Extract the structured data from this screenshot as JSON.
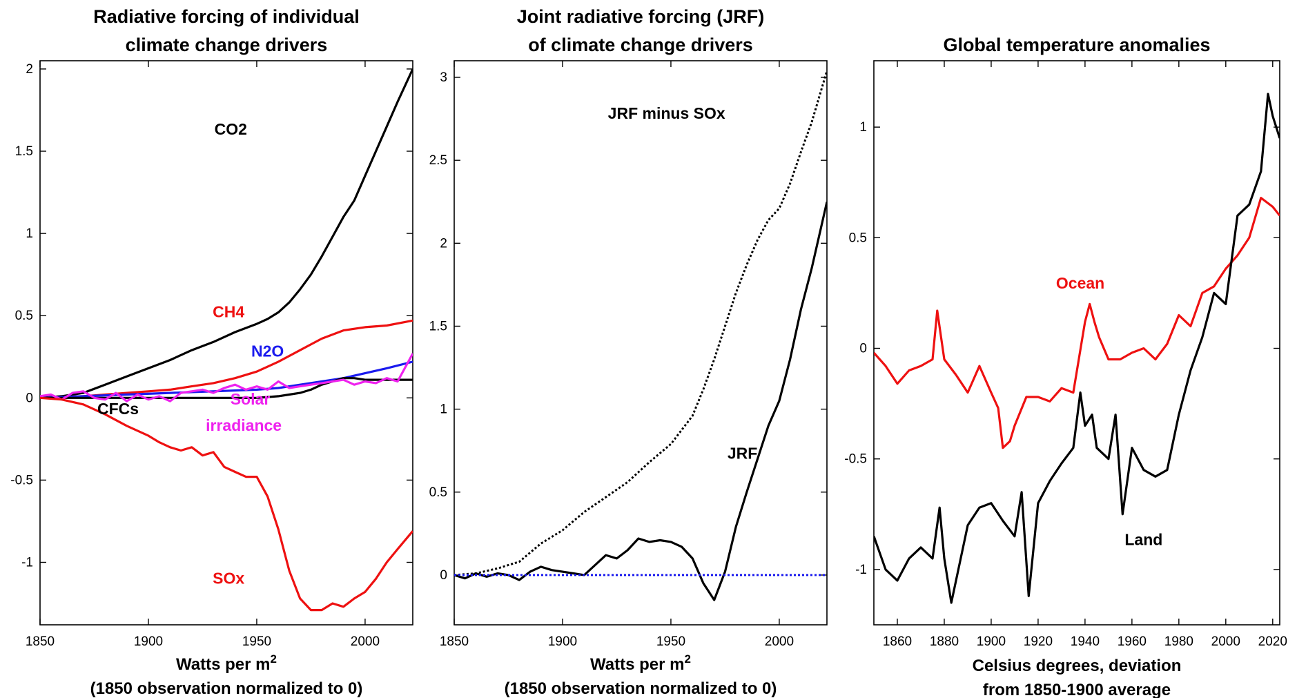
{
  "chart_data": [
    {
      "type": "line",
      "title": "Radiative forcing of individual climate change drivers",
      "title_lines": [
        "Radiative forcing of individual",
        "climate change drivers"
      ],
      "xlabel": "Watts per m2",
      "xlabel_main": "Watts per m",
      "xlabel_sup": "2",
      "xlabel_line2": "(1850 observation normalized to 0)",
      "xlim": [
        1850,
        2022
      ],
      "ylim": [
        -1.38,
        2.05
      ],
      "xticks": [
        1850,
        1900,
        1950,
        2000
      ],
      "yticks": [
        2,
        1.5,
        1,
        0.5,
        0,
        -0.5,
        -1
      ],
      "yticklabels": [
        "2",
        "1.5",
        "1",
        "0.5",
        "0",
        "-0.5",
        "-1"
      ],
      "series": [
        {
          "name": "CO2",
          "color": "#000000",
          "style": "solid",
          "x": [
            1850,
            1860,
            1870,
            1880,
            1890,
            1900,
            1910,
            1920,
            1930,
            1940,
            1950,
            1955,
            1960,
            1965,
            1970,
            1975,
            1980,
            1985,
            1990,
            1995,
            2000,
            2005,
            2010,
            2015,
            2022
          ],
          "y": [
            0,
            0.01,
            0.03,
            0.08,
            0.13,
            0.18,
            0.23,
            0.29,
            0.34,
            0.4,
            0.45,
            0.48,
            0.52,
            0.58,
            0.66,
            0.75,
            0.86,
            0.98,
            1.1,
            1.2,
            1.35,
            1.5,
            1.65,
            1.8,
            2.0
          ]
        },
        {
          "name": "CH4",
          "color": "#ee1111",
          "style": "solid",
          "x": [
            1850,
            1870,
            1890,
            1900,
            1910,
            1920,
            1930,
            1940,
            1950,
            1960,
            1970,
            1980,
            1990,
            2000,
            2010,
            2022
          ],
          "y": [
            0,
            0.01,
            0.03,
            0.04,
            0.05,
            0.07,
            0.09,
            0.12,
            0.16,
            0.22,
            0.29,
            0.36,
            0.41,
            0.43,
            0.44,
            0.47
          ]
        },
        {
          "name": "N2O",
          "color": "#1a1aee",
          "style": "solid",
          "x": [
            1850,
            1870,
            1890,
            1910,
            1930,
            1950,
            1960,
            1970,
            1980,
            1990,
            2000,
            2010,
            2022
          ],
          "y": [
            0,
            0.01,
            0.02,
            0.03,
            0.04,
            0.05,
            0.06,
            0.08,
            0.1,
            0.12,
            0.15,
            0.18,
            0.22
          ]
        },
        {
          "name": "CFCs",
          "color": "#000000",
          "style": "solid",
          "x": [
            1850,
            1900,
            1940,
            1950,
            1960,
            1965,
            1970,
            1975,
            1980,
            1985,
            1990,
            1995,
            2000,
            2010,
            2022
          ],
          "y": [
            0,
            0,
            0,
            0,
            0.01,
            0.02,
            0.03,
            0.05,
            0.08,
            0.1,
            0.12,
            0.12,
            0.11,
            0.11,
            0.11
          ]
        },
        {
          "name": "Solar irradiance",
          "color": "#ee22ee",
          "style": "solid",
          "x": [
            1850,
            1855,
            1860,
            1865,
            1870,
            1875,
            1880,
            1885,
            1890,
            1895,
            1900,
            1905,
            1910,
            1915,
            1920,
            1925,
            1930,
            1935,
            1940,
            1945,
            1950,
            1955,
            1960,
            1965,
            1970,
            1975,
            1980,
            1985,
            1990,
            1995,
            2000,
            2005,
            2010,
            2015,
            2022
          ],
          "y": [
            0.01,
            0.02,
            -0.01,
            0.03,
            0.04,
            0.0,
            -0.01,
            0.03,
            -0.02,
            0.02,
            -0.01,
            0.01,
            -0.02,
            0.03,
            0.04,
            0.05,
            0.03,
            0.06,
            0.08,
            0.05,
            0.07,
            0.05,
            0.1,
            0.06,
            0.07,
            0.08,
            0.09,
            0.1,
            0.11,
            0.08,
            0.1,
            0.09,
            0.12,
            0.1,
            0.27
          ]
        },
        {
          "name": "SOx",
          "color": "#ee1111",
          "style": "solid",
          "x": [
            1850,
            1860,
            1870,
            1880,
            1890,
            1900,
            1905,
            1910,
            1915,
            1920,
            1925,
            1930,
            1935,
            1940,
            1945,
            1950,
            1955,
            1960,
            1965,
            1970,
            1975,
            1980,
            1985,
            1990,
            1995,
            2000,
            2005,
            2010,
            2015,
            2022
          ],
          "y": [
            0,
            -0.01,
            -0.04,
            -0.1,
            -0.17,
            -0.23,
            -0.27,
            -0.3,
            -0.32,
            -0.3,
            -0.35,
            -0.33,
            -0.42,
            -0.45,
            -0.48,
            -0.48,
            -0.6,
            -0.8,
            -1.05,
            -1.22,
            -1.29,
            -1.29,
            -1.25,
            -1.27,
            -1.22,
            -1.18,
            -1.1,
            -1.0,
            -0.92,
            -0.81
          ]
        }
      ],
      "annotations": [
        {
          "text": "CO2",
          "color": "#000000",
          "x": 1938,
          "y": 1.6
        },
        {
          "text": "CH4",
          "color": "#ee1111",
          "x": 1937,
          "y": 0.49
        },
        {
          "text": "N2O",
          "color": "#1a1aee",
          "x": 1955,
          "y": 0.25
        },
        {
          "text": "CFCs",
          "color": "#000000",
          "x": 1886,
          "y": -0.1
        },
        {
          "text": "Solar",
          "color": "#ee22ee",
          "x": 1947,
          "y": -0.04
        },
        {
          "text": "irradiance",
          "color": "#ee22ee",
          "x": 1944,
          "y": -0.2
        },
        {
          "text": "SOx",
          "color": "#ee1111",
          "x": 1937,
          "y": -1.13
        }
      ]
    },
    {
      "type": "line",
      "title": "Joint radiative forcing (JRF) of climate change drivers",
      "title_lines": [
        "Joint radiative forcing (JRF)",
        "of climate change drivers"
      ],
      "xlabel": "Watts per m2",
      "xlabel_main": "Watts per m",
      "xlabel_sup": "2",
      "xlabel_line2": "(1850 observation normalized to 0)",
      "xlim": [
        1850,
        2022
      ],
      "ylim": [
        -0.3,
        3.1
      ],
      "xticks": [
        1850,
        1900,
        1950,
        2000
      ],
      "yticks": [
        3,
        2.5,
        2,
        1.5,
        1,
        0.5,
        0
      ],
      "yticklabels": [
        "3",
        "2.5",
        "2",
        "1.5",
        "1",
        "0.5",
        "0"
      ],
      "series": [
        {
          "name": "JRF minus SOx",
          "color": "#000000",
          "style": "dotted",
          "x": [
            1850,
            1860,
            1870,
            1880,
            1890,
            1900,
            1910,
            1920,
            1930,
            1940,
            1950,
            1960,
            1965,
            1970,
            1975,
            1980,
            1985,
            1990,
            1995,
            2000,
            2005,
            2010,
            2015,
            2022
          ],
          "y": [
            0,
            0.01,
            0.04,
            0.08,
            0.19,
            0.27,
            0.38,
            0.47,
            0.56,
            0.68,
            0.79,
            0.96,
            1.12,
            1.3,
            1.5,
            1.7,
            1.87,
            2.02,
            2.14,
            2.21,
            2.36,
            2.55,
            2.73,
            3.04
          ]
        },
        {
          "name": "JRF",
          "color": "#000000",
          "style": "solid",
          "x": [
            1850,
            1855,
            1860,
            1865,
            1870,
            1875,
            1880,
            1885,
            1890,
            1895,
            1900,
            1905,
            1910,
            1915,
            1920,
            1925,
            1930,
            1935,
            1940,
            1945,
            1950,
            1955,
            1960,
            1965,
            1970,
            1975,
            1980,
            1985,
            1990,
            1995,
            2000,
            2005,
            2010,
            2015,
            2022
          ],
          "y": [
            0,
            -0.02,
            0.01,
            -0.01,
            0.01,
            0.0,
            -0.03,
            0.02,
            0.05,
            0.03,
            0.02,
            0.01,
            0.0,
            0.06,
            0.12,
            0.1,
            0.15,
            0.22,
            0.2,
            0.21,
            0.2,
            0.17,
            0.1,
            -0.05,
            -0.15,
            0.02,
            0.29,
            0.5,
            0.7,
            0.9,
            1.05,
            1.3,
            1.6,
            1.85,
            2.25
          ]
        },
        {
          "name": "",
          "color": "#1a1aee",
          "style": "dotted",
          "x": [
            1850,
            2022
          ],
          "y": [
            0,
            0
          ]
        }
      ],
      "annotations": [
        {
          "text": "JRF minus SOx",
          "color": "#000000",
          "x": 1948,
          "y": 2.75
        },
        {
          "text": "JRF",
          "color": "#000000",
          "x": 1983,
          "y": 0.7
        }
      ]
    },
    {
      "type": "line",
      "title": "Global temperature anomalies",
      "title_lines": [
        "Global temperature anomalies"
      ],
      "xlabel": "Celsius degrees, deviation from 1850-1900 average",
      "xlabel_lines": [
        "Celsius degrees, deviation",
        "from 1850-1900 average"
      ],
      "xlim": [
        1850,
        2023
      ],
      "ylim": [
        -1.25,
        1.3
      ],
      "xticks": [
        1860,
        1880,
        1900,
        1920,
        1940,
        1960,
        1980,
        2000,
        2020
      ],
      "yticks": [
        1,
        0.5,
        0,
        -0.5,
        -1
      ],
      "yticklabels": [
        "1",
        "0.5",
        "0",
        "-0.5",
        "-1"
      ],
      "series": [
        {
          "name": "Ocean",
          "color": "#ee1111",
          "style": "solid",
          "x": [
            1850,
            1855,
            1860,
            1865,
            1870,
            1875,
            1877,
            1880,
            1885,
            1890,
            1895,
            1900,
            1903,
            1905,
            1908,
            1910,
            1915,
            1920,
            1925,
            1930,
            1935,
            1940,
            1942,
            1944,
            1946,
            1950,
            1955,
            1960,
            1965,
            1970,
            1975,
            1980,
            1985,
            1990,
            1995,
            2000,
            2005,
            2010,
            2015,
            2020,
            2023
          ],
          "y": [
            -0.02,
            -0.08,
            -0.16,
            -0.1,
            -0.08,
            -0.05,
            0.17,
            -0.05,
            -0.12,
            -0.2,
            -0.08,
            -0.2,
            -0.27,
            -0.45,
            -0.42,
            -0.35,
            -0.22,
            -0.22,
            -0.24,
            -0.18,
            -0.2,
            0.12,
            0.2,
            0.12,
            0.05,
            -0.05,
            -0.05,
            -0.02,
            0.0,
            -0.05,
            0.02,
            0.15,
            0.1,
            0.25,
            0.28,
            0.36,
            0.42,
            0.5,
            0.68,
            0.64,
            0.6
          ]
        },
        {
          "name": "Land",
          "color": "#000000",
          "style": "solid",
          "x": [
            1850,
            1855,
            1860,
            1865,
            1870,
            1875,
            1878,
            1880,
            1883,
            1885,
            1890,
            1895,
            1900,
            1905,
            1910,
            1913,
            1916,
            1920,
            1925,
            1930,
            1935,
            1938,
            1940,
            1943,
            1945,
            1950,
            1953,
            1956,
            1960,
            1965,
            1970,
            1975,
            1980,
            1985,
            1990,
            1995,
            2000,
            2005,
            2010,
            2015,
            2018,
            2020,
            2023
          ],
          "y": [
            -0.85,
            -1.0,
            -1.05,
            -0.95,
            -0.9,
            -0.95,
            -0.72,
            -0.95,
            -1.15,
            -1.05,
            -0.8,
            -0.72,
            -0.7,
            -0.78,
            -0.85,
            -0.65,
            -1.12,
            -0.7,
            -0.6,
            -0.52,
            -0.45,
            -0.2,
            -0.35,
            -0.3,
            -0.45,
            -0.5,
            -0.3,
            -0.75,
            -0.45,
            -0.55,
            -0.58,
            -0.55,
            -0.3,
            -0.1,
            0.05,
            0.25,
            0.2,
            0.6,
            0.65,
            0.8,
            1.15,
            1.05,
            0.95
          ]
        }
      ],
      "annotations": [
        {
          "text": "Ocean",
          "color": "#ee1111",
          "x": 1938,
          "y": 0.27
        },
        {
          "text": "Land",
          "color": "#000000",
          "x": 1965,
          "y": -0.89
        }
      ]
    }
  ]
}
